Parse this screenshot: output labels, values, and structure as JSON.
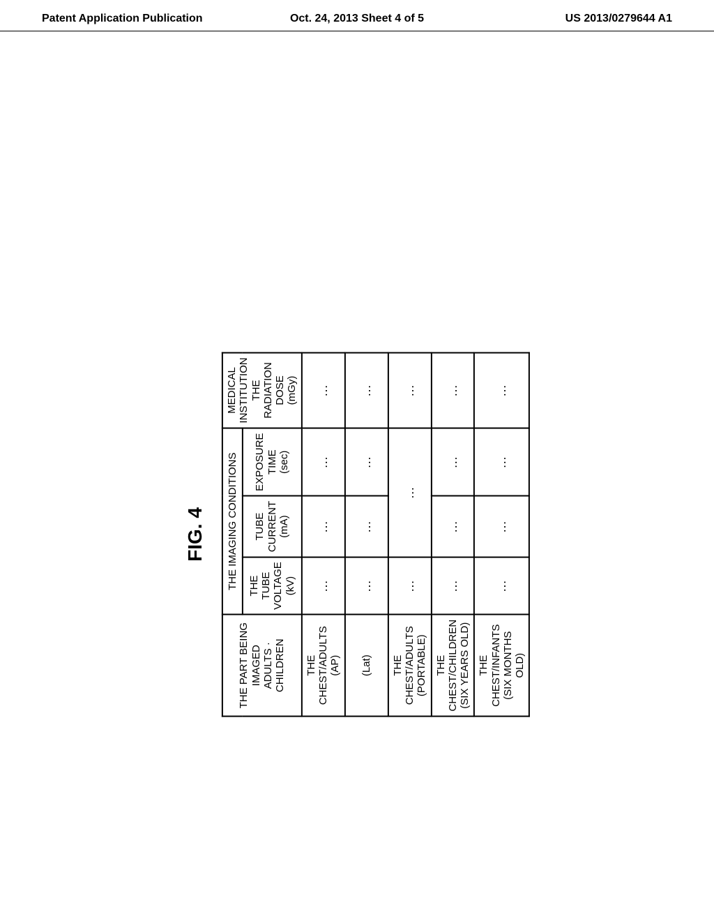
{
  "header": {
    "left": "Patent Application Publication",
    "center": "Oct. 24, 2013  Sheet 4 of 5",
    "right": "US 2013/0279644 A1"
  },
  "figure": {
    "label": "FIG. 4",
    "table": {
      "type": "table",
      "colors": {
        "background": "#ffffff",
        "border": "#000000",
        "text": "#000000"
      },
      "font_size_pt": 11,
      "font_weight": "normal",
      "columns_widths": [
        210,
        165,
        150,
        150,
        195
      ],
      "headers": {
        "part": "THE PART BEING IMAGED\nADULTS · CHILDREN",
        "imaging_conditions": "THE IMAGING CONDITIONS",
        "tube_voltage": "THE TUBE VOLTAGE\n(kV)",
        "tube_current": "TUBE CURRENT\n(mA)",
        "exposure_time": "EXPOSURE TIME\n(sec)",
        "dose": "MEDICAL INSTITUTION\nTHE RADIATION DOSE\n(mGy)"
      },
      "rows": [
        {
          "part": "THE CHEST/ADULTS\n(AP)",
          "voltage": "…",
          "current": "…",
          "exposure": "…",
          "dose": "…"
        },
        {
          "part": "(Lat)",
          "voltage": "…",
          "current": "…",
          "exposure": "…",
          "dose": "…"
        },
        {
          "part": "THE CHEST/ADULTS\n(PORTABLE)",
          "voltage": "…",
          "merged_mid": "…",
          "dose": "…"
        },
        {
          "part": "THE CHEST/CHILDREN\n(SIX YEARS OLD)",
          "voltage": "…",
          "current": "…",
          "exposure": "…",
          "dose": "…"
        },
        {
          "part": "THE CHEST/INFANTS\n(SIX MONTHS OLD)",
          "voltage": "…",
          "current": "…",
          "exposure": "…",
          "dose": "…"
        }
      ]
    }
  }
}
